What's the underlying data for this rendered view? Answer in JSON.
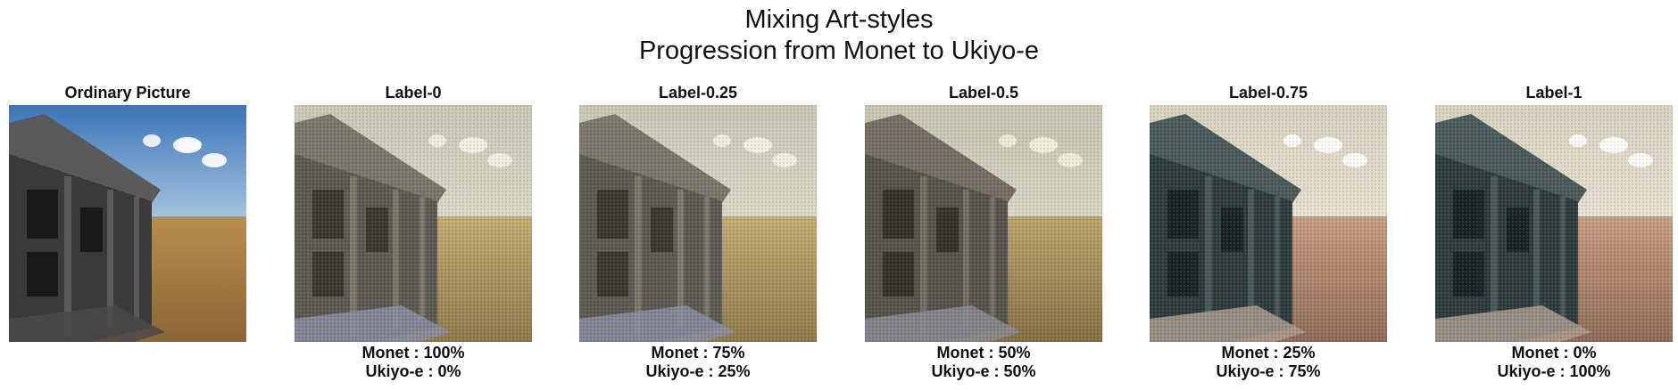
{
  "figure": {
    "title_line1": "Mixing Art-styles",
    "title_line2": "Progression from Monet to Ukiyo-e"
  },
  "panels": [
    {
      "title": "Ordinary Picture",
      "caption1": "",
      "caption2": "",
      "style": "photo"
    },
    {
      "title": "Label-0",
      "caption1": "Monet : 100%",
      "caption2": "Ukiyo-e : 0%",
      "style": "monet"
    },
    {
      "title": "Label-0.25",
      "caption1": "Monet : 75%",
      "caption2": "Ukiyo-e : 25%",
      "style": "monet"
    },
    {
      "title": "Label-0.5",
      "caption1": "Monet : 50%",
      "caption2": "Ukiyo-e : 50%",
      "style": "mix"
    },
    {
      "title": "Label-0.75",
      "caption1": "Monet : 25%",
      "caption2": "Ukiyo-e : 75%",
      "style": "ukiyo"
    },
    {
      "title": "Label-1",
      "caption1": "Monet : 0%",
      "caption2": "Ukiyo-e : 100%",
      "style": "ukiyo"
    }
  ]
}
